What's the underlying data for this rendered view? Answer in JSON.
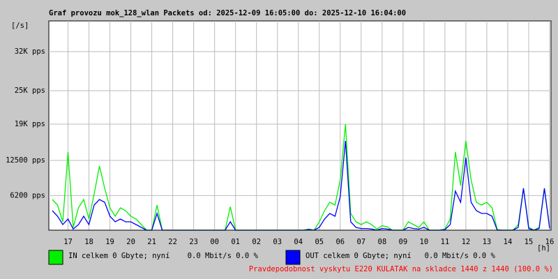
{
  "chart_data": {
    "type": "line",
    "title": "Graf provozu mok_128_wlan Packets od: 2025-12-09 16:05:00 do: 2025-12-10 16:04:00",
    "y_unit": "[/s]",
    "x_unit": "[h]",
    "note": "Pravdepodobnost vyskytu E220 KULATAK na skladce 1440 z 1440 (100.0 %)",
    "xlim": [
      16.0833,
      40.0667
    ],
    "ylim": [
      0,
      37500
    ],
    "grid": true,
    "xticks": [
      {
        "value": 17,
        "label": "17"
      },
      {
        "value": 18,
        "label": "18"
      },
      {
        "value": 19,
        "label": "19"
      },
      {
        "value": 20,
        "label": "20"
      },
      {
        "value": 21,
        "label": "21"
      },
      {
        "value": 22,
        "label": "22"
      },
      {
        "value": 23,
        "label": "23"
      },
      {
        "value": 24,
        "label": "00"
      },
      {
        "value": 25,
        "label": "01"
      },
      {
        "value": 26,
        "label": "02"
      },
      {
        "value": 27,
        "label": "03"
      },
      {
        "value": 28,
        "label": "04"
      },
      {
        "value": 29,
        "label": "05"
      },
      {
        "value": 30,
        "label": "06"
      },
      {
        "value": 31,
        "label": "07"
      },
      {
        "value": 32,
        "label": "08"
      },
      {
        "value": 33,
        "label": "09"
      },
      {
        "value": 34,
        "label": "10"
      },
      {
        "value": 35,
        "label": "11"
      },
      {
        "value": 36,
        "label": "12"
      },
      {
        "value": 37,
        "label": "13"
      },
      {
        "value": 38,
        "label": "14"
      },
      {
        "value": 39,
        "label": "15"
      },
      {
        "value": 40,
        "label": "16"
      }
    ],
    "yticks": [
      {
        "value": 6200,
        "label": "6200 pps"
      },
      {
        "value": 12500,
        "label": "12500 pps"
      },
      {
        "value": 19000,
        "label": "19K pps"
      },
      {
        "value": 25000,
        "label": "25K pps"
      },
      {
        "value": 32000,
        "label": "32K pps"
      }
    ],
    "x": [
      16.25,
      16.5,
      16.75,
      17,
      17.25,
      17.5,
      17.75,
      18,
      18.25,
      18.5,
      18.75,
      19,
      19.25,
      19.5,
      19.75,
      20,
      20.25,
      20.5,
      20.75,
      21,
      21.25,
      21.5,
      21.75,
      22,
      22.25,
      22.5,
      22.75,
      23,
      23.25,
      23.5,
      23.75,
      24,
      24.25,
      24.5,
      24.75,
      25,
      25.25,
      25.5,
      25.75,
      26,
      26.25,
      26.5,
      26.75,
      27,
      27.25,
      27.5,
      27.75,
      28,
      28.25,
      28.5,
      28.75,
      29,
      29.25,
      29.5,
      29.75,
      30,
      30.25,
      30.5,
      30.75,
      31,
      31.25,
      31.5,
      31.75,
      32,
      32.25,
      32.5,
      32.75,
      33,
      33.25,
      33.5,
      33.75,
      34,
      34.25,
      34.5,
      34.75,
      35,
      35.25,
      35.5,
      35.75,
      36,
      36.25,
      36.5,
      36.75,
      37,
      37.25,
      37.5,
      37.75,
      38,
      38.25,
      38.5,
      38.75,
      39,
      39.25,
      39.5,
      39.75,
      40
    ],
    "series": [
      {
        "name": "IN celkem 0 Gbyte; nyní    0.0 Mbit/s 0.0 %",
        "color": "#00f000",
        "values": [
          5500,
          4500,
          1500,
          14000,
          500,
          4000,
          5500,
          2000,
          6500,
          11500,
          7500,
          4000,
          2500,
          4000,
          3500,
          2500,
          2000,
          1000,
          0,
          0,
          4500,
          0,
          0,
          0,
          0,
          0,
          0,
          0,
          0,
          0,
          0,
          0,
          0,
          0,
          4200,
          0,
          0,
          0,
          0,
          0,
          0,
          0,
          0,
          0,
          0,
          0,
          0,
          0,
          0,
          200,
          0,
          1500,
          3500,
          5000,
          4500,
          9000,
          19000,
          3000,
          1500,
          1000,
          1500,
          1000,
          200,
          800,
          600,
          0,
          0,
          0,
          1500,
          1000,
          500,
          1500,
          0,
          0,
          0,
          200,
          2000,
          14000,
          8000,
          16000,
          9000,
          5000,
          4500,
          5000,
          4000,
          100,
          0,
          0,
          0,
          1000,
          7500,
          500,
          0,
          500,
          7500,
          500
        ]
      },
      {
        "name": "OUT celkem 0 Gbyte; nyní   0.0 Mbit/s 0.0 %",
        "color": "#0000ff",
        "values": [
          3500,
          2500,
          1000,
          2000,
          200,
          1000,
          2500,
          1000,
          4500,
          5500,
          5000,
          2500,
          1500,
          2000,
          1500,
          1500,
          1000,
          500,
          0,
          0,
          3000,
          0,
          0,
          0,
          0,
          0,
          0,
          0,
          0,
          0,
          0,
          0,
          0,
          0,
          1500,
          0,
          0,
          0,
          0,
          0,
          0,
          0,
          0,
          0,
          0,
          0,
          0,
          0,
          0,
          100,
          0,
          500,
          2000,
          3000,
          2500,
          6000,
          16000,
          1500,
          500,
          300,
          300,
          200,
          0,
          300,
          200,
          0,
          0,
          0,
          500,
          300,
          200,
          500,
          0,
          0,
          0,
          100,
          1000,
          7000,
          5000,
          13000,
          5000,
          3500,
          3000,
          3000,
          2500,
          0,
          0,
          0,
          0,
          500,
          7500,
          300,
          0,
          300,
          7500,
          300
        ]
      }
    ]
  }
}
